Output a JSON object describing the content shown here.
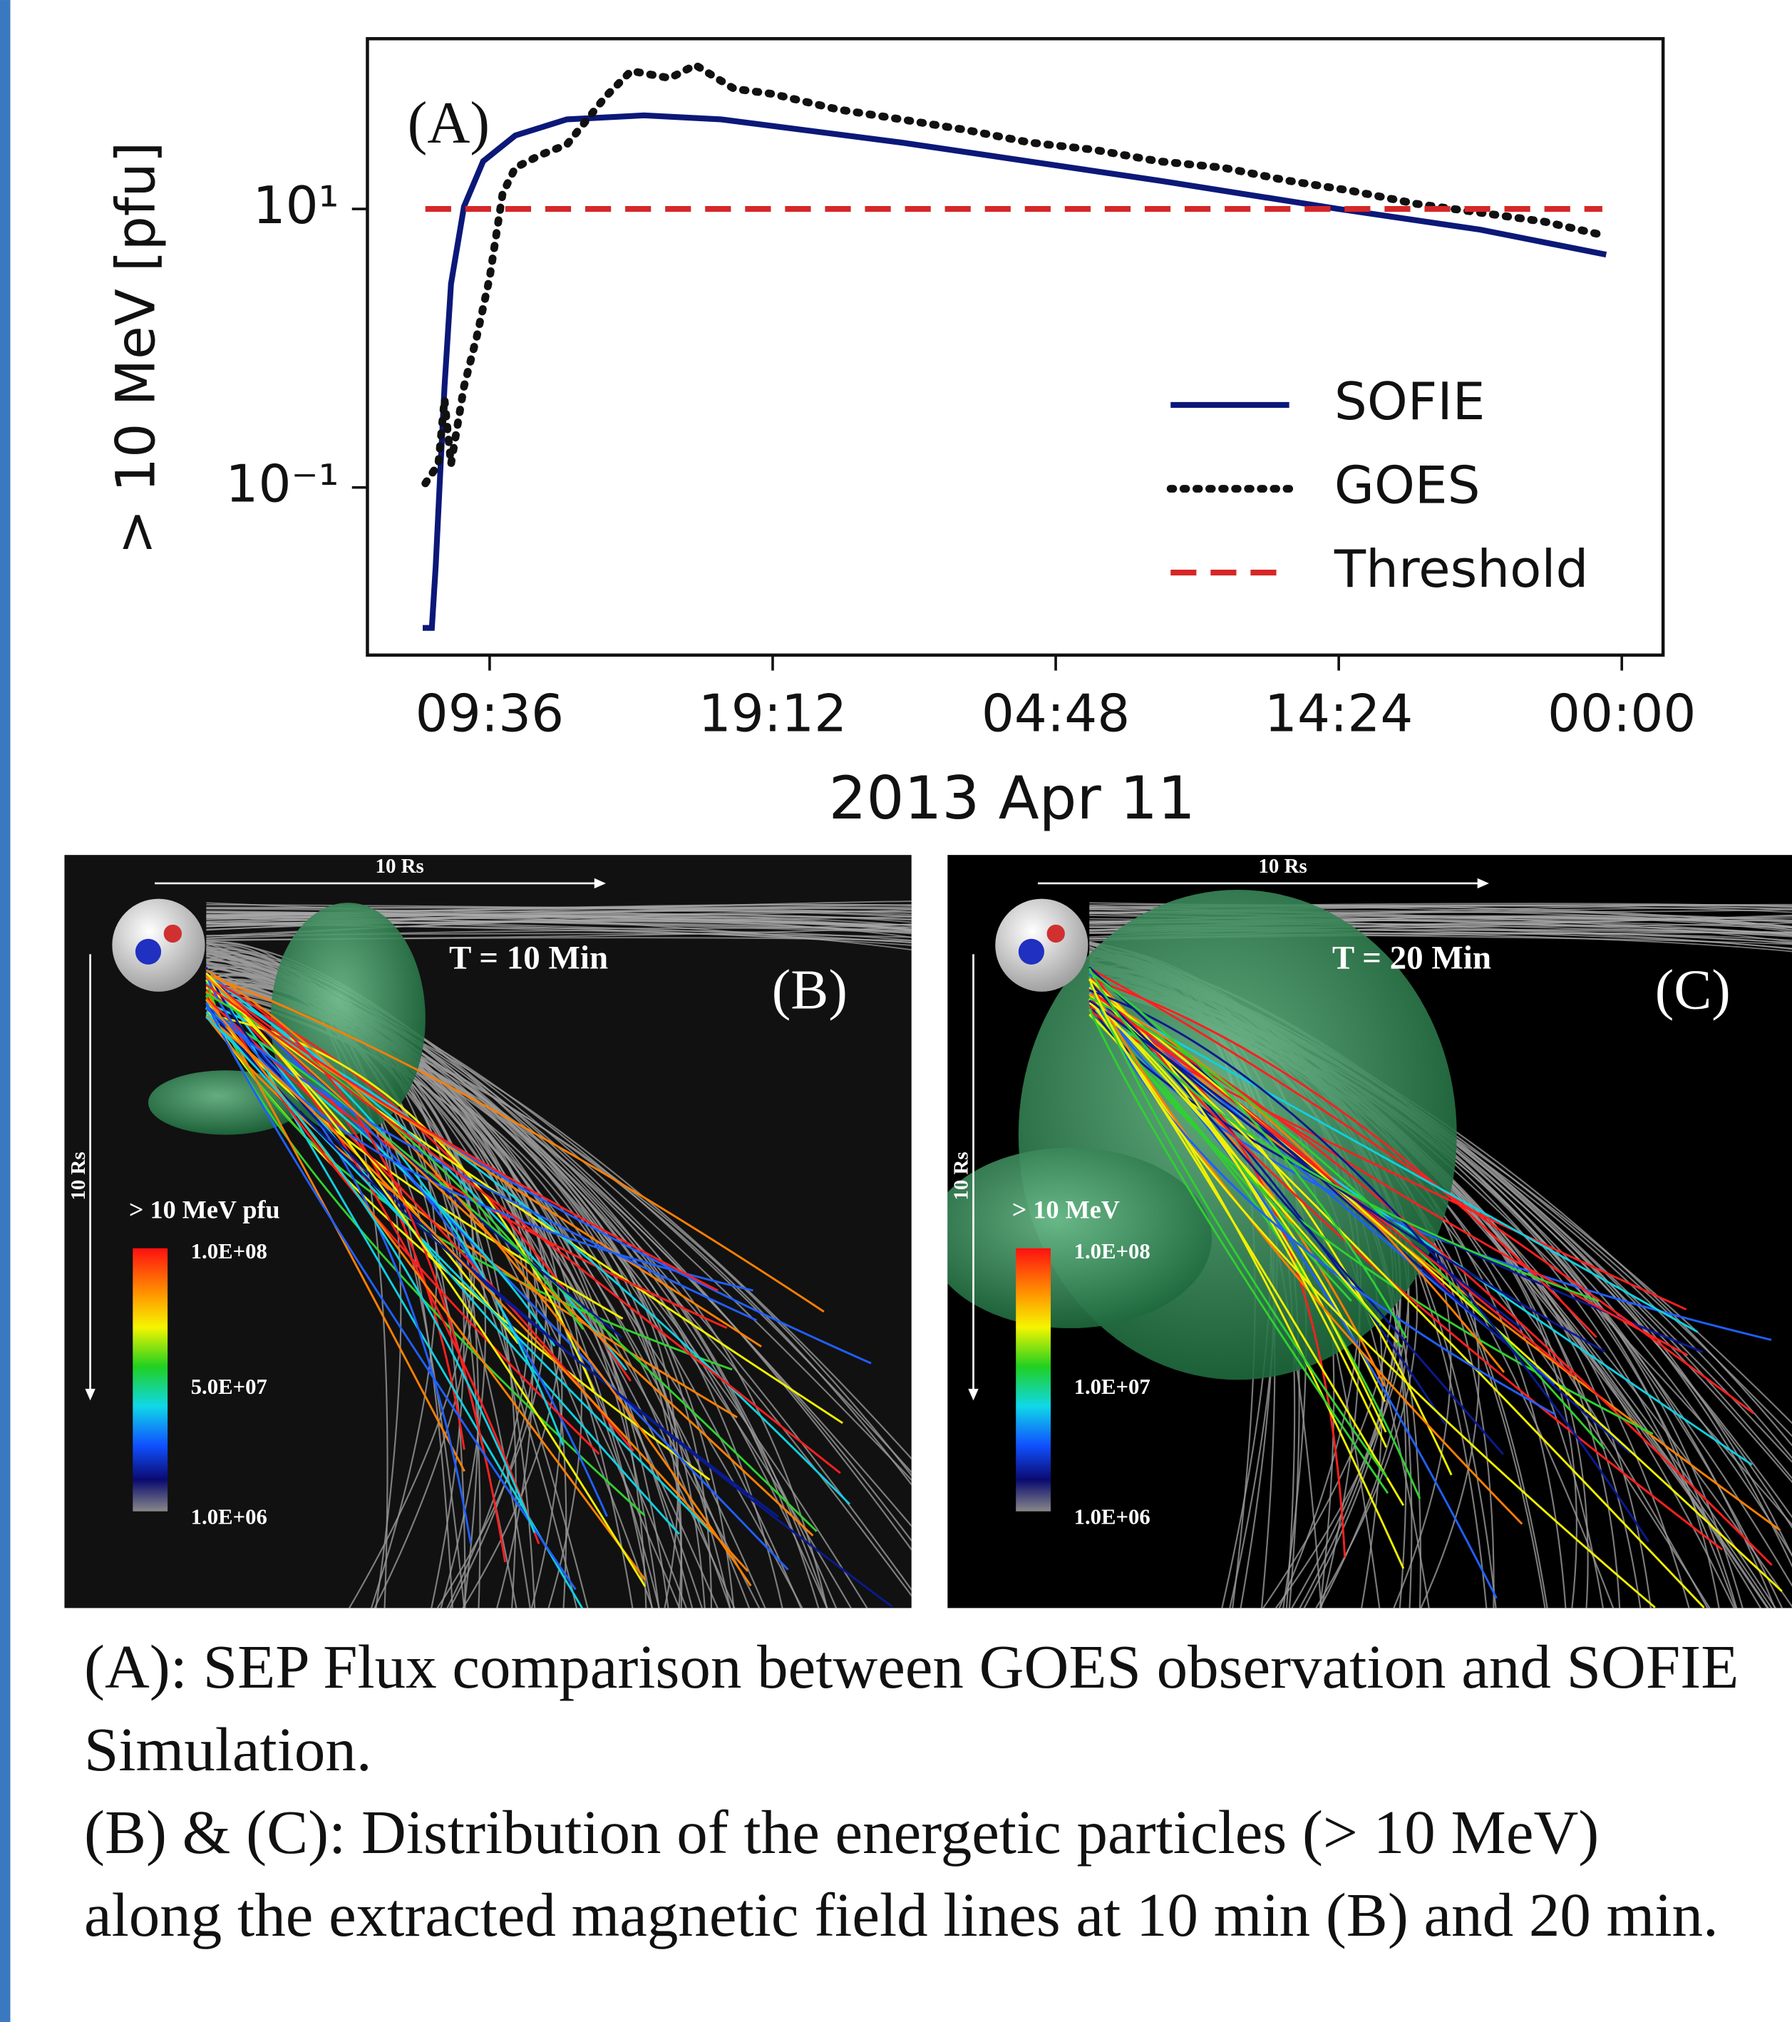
{
  "chart_data": {
    "type": "line",
    "annotation": "(A)",
    "ylabel": "> 10 MeV [pfu]",
    "xlabel": "2013 Apr 11",
    "yscale": "log",
    "grid": false,
    "legend": "lower right",
    "xlim": [
      5.455,
      49.4
    ],
    "ylim": [
      0.00625,
      167
    ],
    "xticks": [
      {
        "value": 9.6,
        "label": "09:36"
      },
      {
        "value": 19.2,
        "label": "19:12"
      },
      {
        "value": 28.8,
        "label": "04:48"
      },
      {
        "value": 38.4,
        "label": "14:24"
      },
      {
        "value": 48,
        "label": "00:00"
      }
    ],
    "yticks": [
      {
        "value": 10,
        "label": "10¹"
      },
      {
        "value": 0.1,
        "label": "10⁻¹"
      }
    ],
    "series": [
      {
        "name": "SOFIE",
        "color": "#0c1878",
        "style": "solid",
        "x": [
          7.33,
          7.64,
          7.77,
          7.9,
          8.07,
          8.29,
          8.73,
          9.38,
          10.47,
          12.22,
          14.84,
          17.45,
          23.56,
          32.29,
          38.4,
          43.2,
          47.47
        ],
        "values": [
          0.0098,
          0.0098,
          0.027,
          0.1,
          0.53,
          2.9,
          10.4,
          22,
          33.7,
          44,
          47,
          44,
          30,
          16,
          10,
          7.1,
          4.7
        ]
      },
      {
        "name": "GOES",
        "color": "#111111",
        "style": "dotted",
        "x": [
          7.42,
          7.86,
          8.07,
          8.29,
          8.73,
          9.16,
          9.6,
          10.04,
          10.47,
          11.34,
          12.22,
          13.53,
          14.4,
          15.71,
          16.58,
          17.89,
          19.2,
          21.38,
          23.56,
          25.74,
          27.92,
          30.11,
          32.29,
          34.47,
          36.65,
          38.83,
          41.01,
          43.2,
          45.38,
          47.34
        ],
        "values": [
          0.107,
          0.147,
          0.43,
          0.147,
          0.53,
          1.2,
          3.2,
          12.9,
          19.8,
          24.5,
          29,
          64,
          98,
          87,
          108,
          73,
          67,
          52,
          44,
          37,
          30,
          26.6,
          22,
          19.8,
          16,
          13.5,
          10.9,
          9.4,
          8.1,
          6.5
        ]
      },
      {
        "name": "Threshold",
        "color": "#d62728",
        "style": "dashed",
        "x": [
          7.42,
          47.34
        ],
        "values": [
          10,
          10
        ]
      }
    ]
  },
  "panels": [
    {
      "label": "(B)",
      "time": "T = 10 Min",
      "scale_top": "10 Rs",
      "scale_side": "10 Rs",
      "colorbar_title": "> 10 MeV pfu",
      "colorbar_ticks": [
        "1.0E+08",
        "5.0E+07",
        "1.0E+06"
      ]
    },
    {
      "label": "(C)",
      "time": "T = 20 Min",
      "scale_top": "10 Rs",
      "scale_side": "10 Rs",
      "colorbar_title": "> 10 MeV",
      "colorbar_ticks": [
        "1.0E+08",
        "1.0E+07",
        "1.0E+06"
      ]
    }
  ],
  "caption": [
    "(A): SEP Flux comparison between GOES observation and SOFIE Simulation.",
    "(B) & (C): Distribution of the energetic particles (> 10 MeV) along the extracted magnetic field lines at 10 min (B) and 20 min."
  ]
}
